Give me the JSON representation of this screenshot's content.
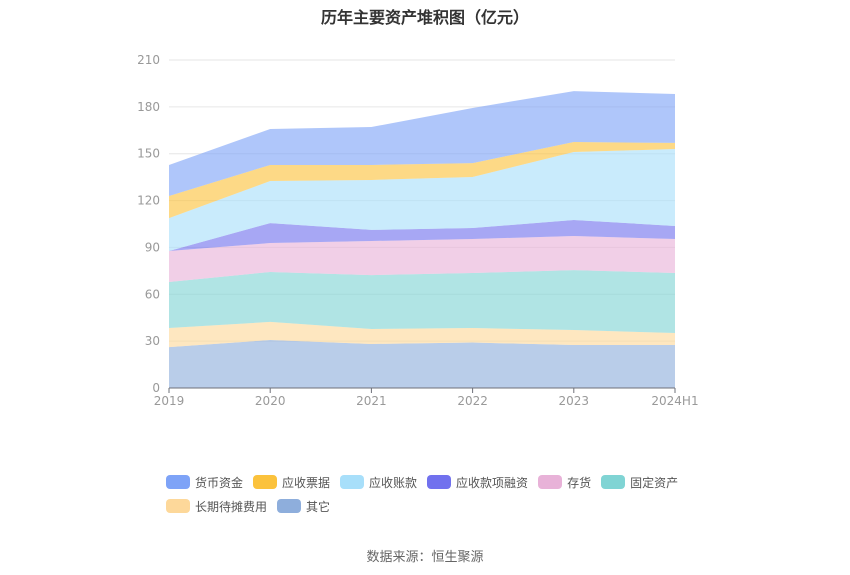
{
  "chart_data": {
    "type": "area",
    "stacked": true,
    "title": "历年主要资产堆积图（亿元）",
    "xlabel": "",
    "ylabel": "",
    "ylim": [
      0,
      210
    ],
    "yticks": [
      "0",
      "30",
      "60",
      "90",
      "120",
      "150",
      "180",
      "210"
    ],
    "categories": [
      "2019",
      "2020",
      "2021",
      "2022",
      "2023",
      "2024H1"
    ],
    "grid": true,
    "legend_position": "bottom",
    "series": [
      {
        "name": "货币资金",
        "color": "#7ea3f7",
        "values": [
          19.9,
          23.0,
          24.3,
          35.3,
          32.6,
          31.3
        ]
      },
      {
        "name": "应收票据",
        "color": "#fbc23c",
        "values": [
          14.1,
          10.3,
          9.6,
          8.9,
          6.4,
          3.9
        ]
      },
      {
        "name": "应收账款",
        "color": "#a8dffa",
        "values": [
          21.1,
          26.9,
          32.0,
          32.7,
          43.5,
          49.3
        ]
      },
      {
        "name": "应收款项融资",
        "color": "#7171ee",
        "values": [
          0,
          12.8,
          7.1,
          7.0,
          10.3,
          8.3
        ]
      },
      {
        "name": "存货",
        "color": "#e8b2d8",
        "values": [
          19.8,
          18.5,
          21.8,
          21.8,
          21.8,
          21.8
        ]
      },
      {
        "name": "固定资产",
        "color": "#80d4d4",
        "values": [
          29.5,
          32.0,
          34.5,
          35.2,
          38.4,
          38.4
        ]
      },
      {
        "name": "长期待摊费用",
        "color": "#fdd89a",
        "values": [
          12.2,
          11.6,
          9.6,
          9.3,
          9.6,
          7.7
        ]
      },
      {
        "name": "其它",
        "color": "#8eaedc",
        "values": [
          26.2,
          30.7,
          28.2,
          29.1,
          27.5,
          27.5
        ]
      }
    ]
  },
  "source": "数据来源：恒生聚源"
}
